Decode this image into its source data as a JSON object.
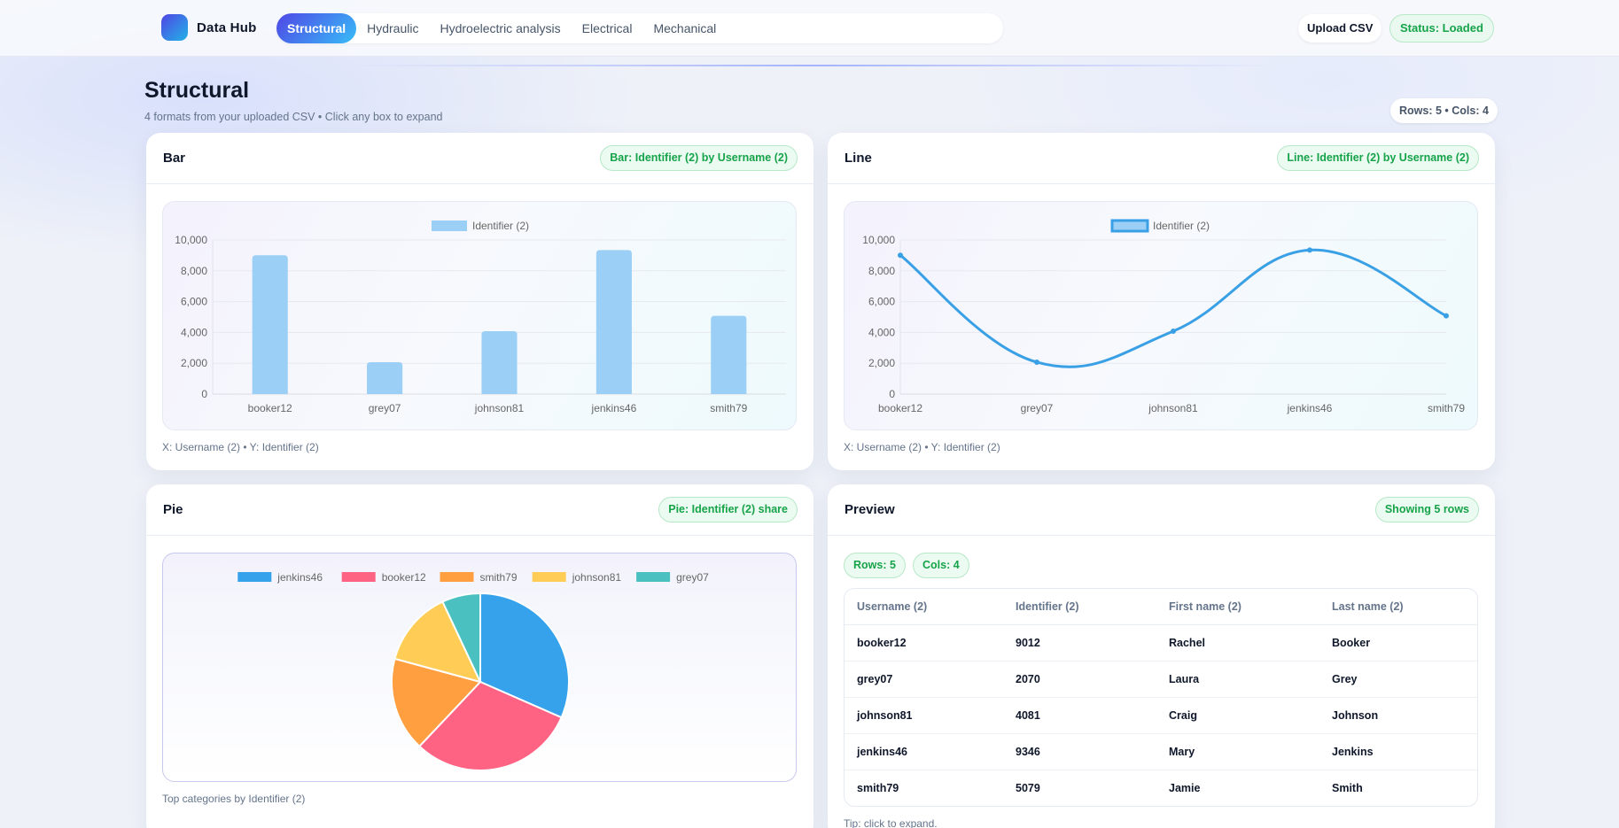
{
  "app": {
    "name": "Data Hub",
    "upload_label": "Upload CSV",
    "status_label": "Status: Loaded"
  },
  "nav": {
    "tabs": [
      {
        "label": "Structural",
        "active": true
      },
      {
        "label": "Hydraulic",
        "active": false
      },
      {
        "label": "Hydroelectric analysis",
        "active": false
      },
      {
        "label": "Electrical",
        "active": false
      },
      {
        "label": "Mechanical",
        "active": false
      }
    ]
  },
  "page": {
    "title": "Structural",
    "subtitle": "4 formats from your uploaded CSV • Click any box to expand",
    "dims_label": "Rows: 5 • Cols: 4"
  },
  "cards": {
    "bar": {
      "title": "Bar",
      "badge": "Bar: Identifier (2) by Username (2)",
      "caption": "X: Username (2) • Y: Identifier (2)"
    },
    "line": {
      "title": "Line",
      "badge": "Line: Identifier (2) by Username (2)",
      "caption": "X: Username (2) • Y: Identifier (2)"
    },
    "pie": {
      "title": "Pie",
      "badge": "Pie: Identifier (2) share",
      "caption": "Top categories by Identifier (2)"
    },
    "preview": {
      "title": "Preview",
      "badge": "Showing 5 rows",
      "rows_pill": "Rows: 5",
      "cols_pill": "Cols: 4",
      "tip": "Tip: click to expand."
    }
  },
  "table": {
    "columns": [
      "Username (2)",
      "Identifier (2)",
      "First name (2)",
      "Last name (2)"
    ],
    "rows": [
      [
        "booker12",
        "9012",
        "Rachel",
        "Booker"
      ],
      [
        "grey07",
        "2070",
        "Laura",
        "Grey"
      ],
      [
        "johnson81",
        "4081",
        "Craig",
        "Johnson"
      ],
      [
        "jenkins46",
        "9346",
        "Mary",
        "Jenkins"
      ],
      [
        "smith79",
        "5079",
        "Jamie",
        "Smith"
      ]
    ]
  },
  "colors": {
    "accent": "#4f46e5",
    "bar_fill": "#9ccff5",
    "line": "#3aa0e6",
    "success": "#16a34a"
  },
  "chart_data": [
    {
      "type": "bar",
      "categories": [
        "booker12",
        "grey07",
        "johnson81",
        "jenkins46",
        "smith79"
      ],
      "series": [
        {
          "name": "Identifier (2)",
          "values": [
            9012,
            2070,
            4081,
            9346,
            5079
          ]
        }
      ],
      "ylim": [
        0,
        10000
      ],
      "yticks": [
        "0",
        "2,000",
        "4,000",
        "6,000",
        "8,000",
        "10,000"
      ],
      "legend": "top-center",
      "grid": true
    },
    {
      "type": "line",
      "categories": [
        "booker12",
        "grey07",
        "johnson81",
        "jenkins46",
        "smith79"
      ],
      "series": [
        {
          "name": "Identifier (2)",
          "values": [
            9012,
            2070,
            4081,
            9346,
            5079
          ]
        }
      ],
      "ylim": [
        0,
        10000
      ],
      "yticks": [
        "0",
        "2,000",
        "4,000",
        "6,000",
        "8,000",
        "10,000"
      ],
      "legend": "top-center",
      "grid": true
    },
    {
      "type": "pie",
      "categories": [
        "jenkins46",
        "booker12",
        "smith79",
        "johnson81",
        "grey07"
      ],
      "values": [
        9346,
        9012,
        5079,
        4081,
        2070
      ],
      "colors": [
        "#36a2eb",
        "#ff6384",
        "#ff9f40",
        "#ffcd56",
        "#4bc0c0"
      ],
      "legend": "top-center"
    }
  ]
}
